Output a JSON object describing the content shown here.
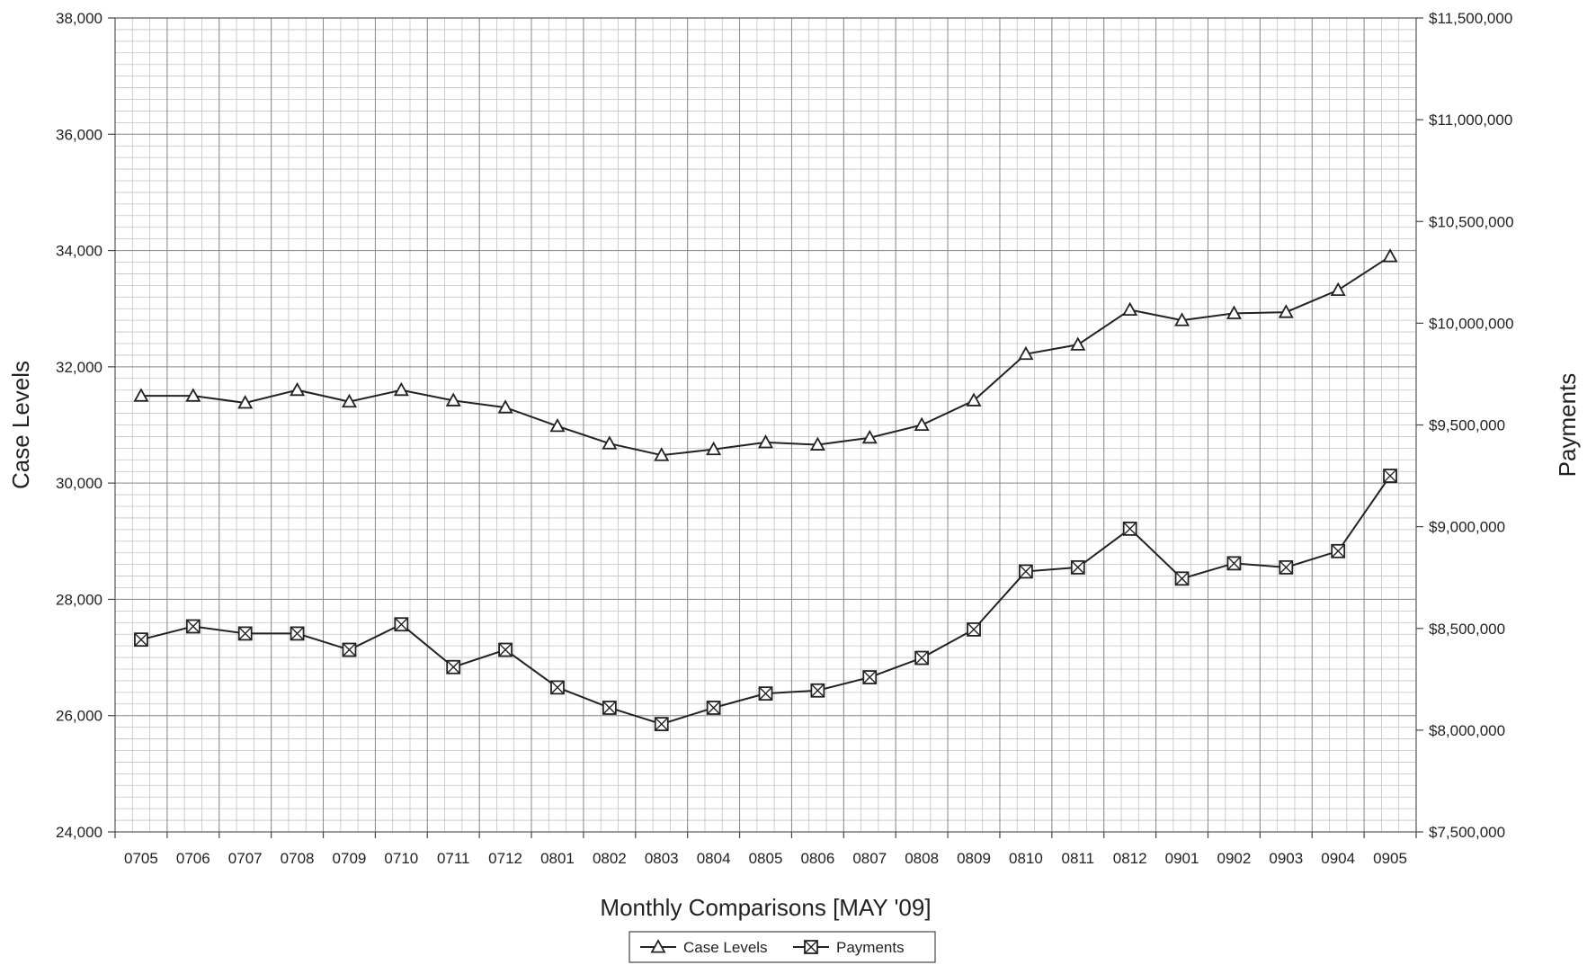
{
  "chart_data": {
    "type": "line",
    "xlabel": "Monthly Comparisons [MAY '09]",
    "ylabel": "Case Levels",
    "y2label": "Payments",
    "categories": [
      "0705",
      "0706",
      "0707",
      "0708",
      "0709",
      "0710",
      "0711",
      "0712",
      "0801",
      "0802",
      "0803",
      "0804",
      "0805",
      "0806",
      "0807",
      "0808",
      "0809",
      "0810",
      "0811",
      "0812",
      "0901",
      "0902",
      "0903",
      "0904",
      "0905"
    ],
    "ylim": [
      24000,
      38000
    ],
    "y2lim": [
      7500000,
      11500000
    ],
    "yticks": [
      24000,
      26000,
      28000,
      30000,
      32000,
      34000,
      36000,
      38000
    ],
    "ytick_labels": [
      "24,000",
      "26,000",
      "28,000",
      "30,000",
      "32,000",
      "34,000",
      "36,000",
      "38,000"
    ],
    "y2ticks": [
      7500000,
      8000000,
      8500000,
      9000000,
      9500000,
      10000000,
      10500000,
      11000000,
      11500000
    ],
    "y2tick_labels": [
      "$7,500,000",
      "$8,000,000",
      "$8,500,000",
      "$9,000,000",
      "$9,500,000",
      "$10,000,000",
      "$10,500,000",
      "$11,000,000",
      "$11,500,000"
    ],
    "grid": true,
    "legend_position": "bottom-center",
    "series": [
      {
        "name": "Case Levels",
        "axis": "left",
        "marker": "triangle",
        "values": [
          31500,
          31500,
          31380,
          31600,
          31400,
          31600,
          31420,
          31300,
          30980,
          30680,
          30480,
          30580,
          30700,
          30660,
          30780,
          31000,
          31420,
          32220,
          32380,
          32980,
          32800,
          32920,
          32940,
          33320,
          33900
        ]
      },
      {
        "name": "Payments",
        "axis": "right",
        "marker": "box-x",
        "values": [
          8445000,
          8510000,
          8475000,
          8475000,
          8395000,
          8520000,
          8310000,
          8395000,
          8210000,
          8110000,
          8030000,
          8110000,
          8180000,
          8195000,
          8260000,
          8355000,
          8495000,
          8780000,
          8800000,
          8990000,
          8745000,
          8820000,
          8800000,
          8880000,
          9250000
        ]
      }
    ]
  }
}
